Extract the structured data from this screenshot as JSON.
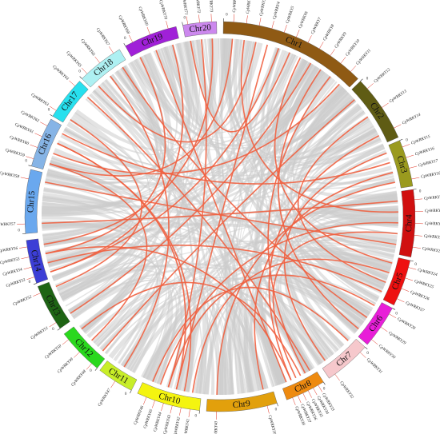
{
  "diagram": {
    "colors": {
      "background_link": "#cccccc",
      "highlight_link": "#f06040",
      "gene_tick": "#e03020",
      "label_text": "#111111"
    },
    "zero_tick": "0",
    "chromosomes": [
      {
        "label": "Chr1",
        "color": "#8f5a14"
      },
      {
        "label": "Chr2",
        "color": "#5f5c14"
      },
      {
        "label": "Chr3",
        "color": "#9a9a1e"
      },
      {
        "label": "Chr4",
        "color": "#d01010"
      },
      {
        "label": "Chr5",
        "color": "#ee1010"
      },
      {
        "label": "Chr6",
        "color": "#e81ed8"
      },
      {
        "label": "Chr7",
        "color": "#f6c8cc"
      },
      {
        "label": "Chr8",
        "color": "#ee8a10"
      },
      {
        "label": "Chr9",
        "color": "#e2a00c"
      },
      {
        "label": "Chr10",
        "color": "#f4f410"
      },
      {
        "label": "Chr11",
        "color": "#c8ee28"
      },
      {
        "label": "Chr12",
        "color": "#2ad81e"
      },
      {
        "label": "Chr13",
        "color": "#1e6414"
      },
      {
        "label": "Chr14",
        "color": "#3c3ed6"
      },
      {
        "label": "Chr15",
        "color": "#6aa8ee"
      },
      {
        "label": "Chr16",
        "color": "#86b4e6"
      },
      {
        "label": "Chr17",
        "color": "#28e0ee"
      },
      {
        "label": "Chr18",
        "color": "#aef0f2"
      },
      {
        "label": "Chr19",
        "color": "#a020d8"
      },
      {
        "label": "Chr20",
        "color": "#cc88ee"
      }
    ],
    "genes": [
      {
        "label": "CpWRKY1",
        "chr": 0
      },
      {
        "label": "CpWRKY2",
        "chr": 0
      },
      {
        "label": "CpWRKY3",
        "chr": 0
      },
      {
        "label": "CpWRKY4",
        "chr": 0
      },
      {
        "label": "CpWRKY5",
        "chr": 0
      },
      {
        "label": "CpWRKY6",
        "chr": 0
      },
      {
        "label": "CpWRKY7",
        "chr": 0
      },
      {
        "label": "CpWRKY8",
        "chr": 0
      },
      {
        "label": "CpWRKY9",
        "chr": 0
      },
      {
        "label": "CpWRKY10",
        "chr": 0
      },
      {
        "label": "CpWRKY11",
        "chr": 0
      },
      {
        "label": "CpWRKY12",
        "chr": 1
      },
      {
        "label": "CpWRKY13",
        "chr": 1
      },
      {
        "label": "CpWRKY14",
        "chr": 1
      },
      {
        "label": "CpWRKY15",
        "chr": 2
      },
      {
        "label": "CpWRKY16",
        "chr": 2
      },
      {
        "label": "CpWRKY17",
        "chr": 2
      },
      {
        "label": "CpWRKY18",
        "chr": 2
      },
      {
        "label": "CpWRKY19",
        "chr": 3
      },
      {
        "label": "CpWRKY20",
        "chr": 3
      },
      {
        "label": "CpWRKY21",
        "chr": 3
      },
      {
        "label": "CpWRKY22",
        "chr": 3
      },
      {
        "label": "CpWRKY23",
        "chr": 3
      },
      {
        "label": "CpWRKY24",
        "chr": 4
      },
      {
        "label": "CpWRKY25",
        "chr": 4
      },
      {
        "label": "CpWRKY26",
        "chr": 4
      },
      {
        "label": "CpWRKY27",
        "chr": 4
      },
      {
        "label": "CpWRKY28",
        "chr": 5
      },
      {
        "label": "CpWRKY29",
        "chr": 5
      },
      {
        "label": "CpWRKY30",
        "chr": 5
      },
      {
        "label": "CpWRKY31",
        "chr": 6
      },
      {
        "label": "CpWRKY32",
        "chr": 6
      },
      {
        "label": "CpWRKY33",
        "chr": 7
      },
      {
        "label": "CpWRKY34",
        "chr": 7
      },
      {
        "label": "CpWRKY35",
        "chr": 7
      },
      {
        "label": "CpWRKY36",
        "chr": 7
      },
      {
        "label": "CpWRKY37",
        "chr": 7
      },
      {
        "label": "CpWRKY38",
        "chr": 7
      },
      {
        "label": "CpWRKY39",
        "chr": 8
      },
      {
        "label": "CpWRKY40",
        "chr": 8
      },
      {
        "label": "CpWRKY41",
        "chr": 9
      },
      {
        "label": "CpWRKY42",
        "chr": 9
      },
      {
        "label": "CpWRKY43",
        "chr": 9
      },
      {
        "label": "CpWRKY44",
        "chr": 9
      },
      {
        "label": "CpWRKY45",
        "chr": 9
      },
      {
        "label": "CpWRKY46",
        "chr": 9
      },
      {
        "label": "CpWRKY47",
        "chr": 10
      },
      {
        "label": "CpWRKY48",
        "chr": 11
      },
      {
        "label": "CpWRKY49",
        "chr": 11
      },
      {
        "label": "CpWRKY50",
        "chr": 11
      },
      {
        "label": "CpWRKY51",
        "chr": 12
      },
      {
        "label": "CpWRKY52",
        "chr": 12
      },
      {
        "label": "CpWRKY53",
        "chr": 13
      },
      {
        "label": "CpWRKY54",
        "chr": 13
      },
      {
        "label": "CpWRKY55",
        "chr": 13
      },
      {
        "label": "CpWRKY56",
        "chr": 13
      },
      {
        "label": "CpWRKY57",
        "chr": 14
      },
      {
        "label": "CpWRKY58",
        "chr": 14
      },
      {
        "label": "CpWRKY59",
        "chr": 15
      },
      {
        "label": "CpWRKY60",
        "chr": 15
      },
      {
        "label": "CpWRKY61",
        "chr": 15
      },
      {
        "label": "CpWRKY62",
        "chr": 15
      },
      {
        "label": "CpWRKY63",
        "chr": 16
      },
      {
        "label": "CpWRKY64",
        "chr": 16
      },
      {
        "label": "CpWRKY65",
        "chr": 17
      },
      {
        "label": "CpWRKY66",
        "chr": 17
      },
      {
        "label": "CpWRKY67",
        "chr": 17
      },
      {
        "label": "CpWRKY68",
        "chr": 18
      },
      {
        "label": "CpWRKY69",
        "chr": 18
      },
      {
        "label": "CpWRKY70",
        "chr": 18
      },
      {
        "label": "CpWRKY71",
        "chr": 19
      },
      {
        "label": "CpWRKY72",
        "chr": 19
      },
      {
        "label": "CpWRKY73",
        "chr": 19
      }
    ],
    "highlight_links": [
      [
        2,
        64
      ],
      [
        3,
        42
      ],
      [
        5,
        70
      ],
      [
        7,
        50
      ],
      [
        9,
        33
      ],
      [
        10,
        59
      ],
      [
        11,
        47
      ],
      [
        13,
        36
      ],
      [
        15,
        61
      ],
      [
        17,
        39
      ],
      [
        18,
        56
      ],
      [
        20,
        44
      ],
      [
        22,
        57
      ],
      [
        24,
        40
      ],
      [
        26,
        53
      ],
      [
        28,
        66
      ],
      [
        30,
        45
      ],
      [
        32,
        63
      ],
      [
        34,
        49
      ],
      [
        37,
        68
      ],
      [
        41,
        60
      ],
      [
        43,
        71
      ],
      [
        46,
        65
      ],
      [
        48,
        58
      ],
      [
        51,
        62
      ],
      [
        52,
        69
      ],
      [
        54,
        67
      ],
      [
        55,
        72
      ],
      [
        1,
        19
      ],
      [
        6,
        23
      ],
      [
        8,
        29
      ],
      [
        12,
        25
      ],
      [
        14,
        31
      ],
      [
        16,
        38
      ],
      [
        21,
        35
      ],
      [
        27,
        43
      ],
      [
        4,
        52
      ],
      [
        0,
        58
      ],
      [
        36,
        54
      ],
      [
        42,
        60
      ]
    ]
  }
}
